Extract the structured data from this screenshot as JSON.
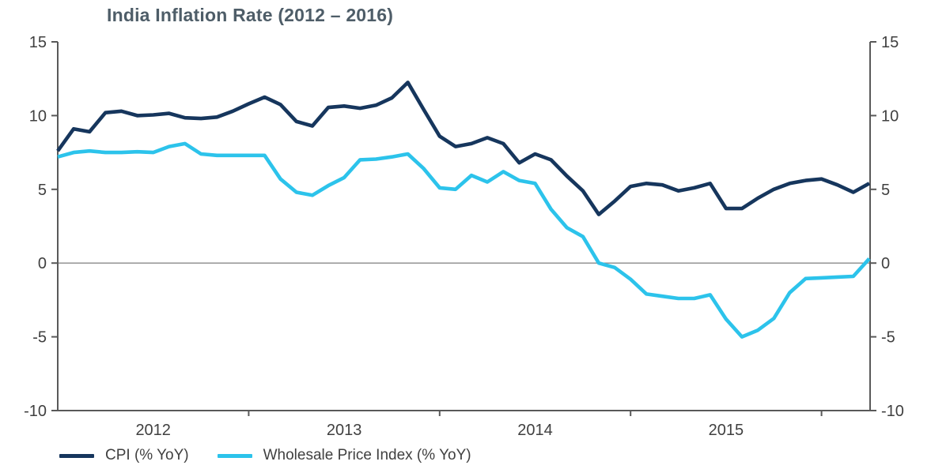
{
  "title": "India Inflation Rate (2012 – 2016)",
  "legend": {
    "cpi_label": "CPI (% YoY)",
    "wpi_label": "Wholesale Price Index (% YoY)"
  },
  "colors": {
    "cpi": "#16365d",
    "wpi": "#2cc3eb",
    "axis": "#595959",
    "zero_line": "#8a8a8a",
    "tick_text": "#404040",
    "title_text": "#4e5d68"
  },
  "chart_data": {
    "type": "line",
    "title": "India Inflation Rate (2012 – 2016)",
    "xlabel": "",
    "ylabel": "",
    "ylim": [
      -10,
      15
    ],
    "y_ticks": [
      15,
      10,
      5,
      0,
      -5,
      -10
    ],
    "y_axis_sides": [
      "left",
      "right"
    ],
    "grid": "zero-line-only",
    "legend_position": "bottom-left",
    "x_year_labels": [
      "2012",
      "2013",
      "2014",
      "2015"
    ],
    "x": [
      "2012-01",
      "2012-02",
      "2012-03",
      "2012-04",
      "2012-05",
      "2012-06",
      "2012-07",
      "2012-08",
      "2012-09",
      "2012-10",
      "2012-11",
      "2012-12",
      "2013-01",
      "2013-02",
      "2013-03",
      "2013-04",
      "2013-05",
      "2013-06",
      "2013-07",
      "2013-08",
      "2013-09",
      "2013-10",
      "2013-11",
      "2013-12",
      "2014-01",
      "2014-02",
      "2014-03",
      "2014-04",
      "2014-05",
      "2014-06",
      "2014-07",
      "2014-08",
      "2014-09",
      "2014-10",
      "2014-11",
      "2014-12",
      "2015-01",
      "2015-02",
      "2015-03",
      "2015-04",
      "2015-05",
      "2015-06",
      "2015-07",
      "2015-08",
      "2015-09",
      "2015-10",
      "2015-11",
      "2015-12",
      "2016-01",
      "2016-02",
      "2016-03",
      "2016-04"
    ],
    "series": [
      {
        "name": "CPI (% YoY)",
        "color": "#16365d",
        "values": [
          7.6,
          9.1,
          8.9,
          10.2,
          10.3,
          10.0,
          10.05,
          10.15,
          9.85,
          9.8,
          9.9,
          10.3,
          10.8,
          11.25,
          10.75,
          9.6,
          9.3,
          10.55,
          10.65,
          10.5,
          10.7,
          11.2,
          12.25,
          10.4,
          8.6,
          7.9,
          8.1,
          8.5,
          8.1,
          6.8,
          7.4,
          7.0,
          5.9,
          4.9,
          3.3,
          4.2,
          5.2,
          5.4,
          5.3,
          4.9,
          5.1,
          5.4,
          3.7,
          3.7,
          4.4,
          5.0,
          5.4,
          5.6,
          5.7,
          5.3,
          4.8,
          5.4
        ]
      },
      {
        "name": "Wholesale Price Index (% YoY)",
        "color": "#2cc3eb",
        "values": [
          7.2,
          7.5,
          7.6,
          7.5,
          7.5,
          7.55,
          7.5,
          7.9,
          8.1,
          7.4,
          7.3,
          7.3,
          7.3,
          7.3,
          5.7,
          4.8,
          4.6,
          5.25,
          5.8,
          7.0,
          7.05,
          7.2,
          7.4,
          6.4,
          5.1,
          5.0,
          5.95,
          5.5,
          6.2,
          5.6,
          5.4,
          3.65,
          2.4,
          1.8,
          0.0,
          -0.3,
          -1.1,
          -2.1,
          -2.25,
          -2.4,
          -2.4,
          -2.15,
          -3.8,
          -5.0,
          -4.55,
          -3.75,
          -2.0,
          -1.05,
          -1.0,
          -0.95,
          -0.9,
          0.3
        ]
      }
    ]
  }
}
